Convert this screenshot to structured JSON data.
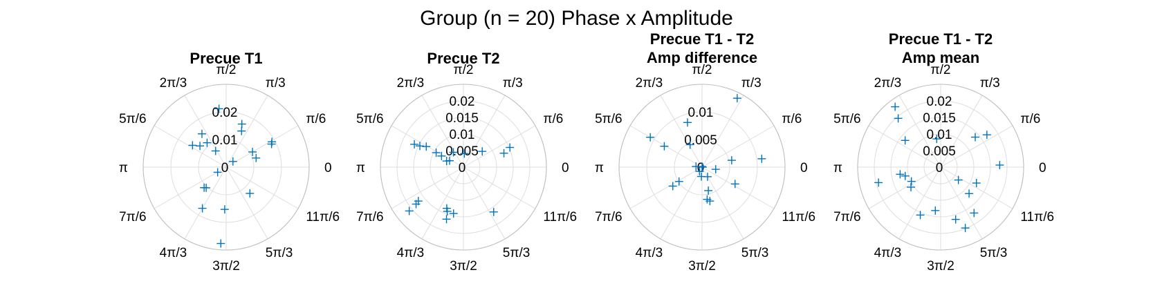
{
  "figure": {
    "title": "Group (n = 20) Phase x Amplitude"
  },
  "style": {
    "marker_color": "#0072bd",
    "grid_color": "#dedede",
    "axis_color": "#bcbcbc"
  },
  "chart_data": [
    {
      "type": "scatter",
      "coordinate_system": "polar",
      "marker": "+",
      "title_lines": [
        "Precue T1"
      ],
      "rlim": [
        0,
        0.03
      ],
      "rticks": [
        0,
        0.01,
        0.02
      ],
      "rtick_labels": [
        "0",
        "0.01",
        "0.02"
      ],
      "theta_ticks_deg": [
        0,
        30,
        60,
        90,
        120,
        150,
        180,
        210,
        240,
        270,
        300,
        330
      ],
      "theta_tick_labels": [
        "0",
        "π/6",
        "π/3",
        "π/2",
        "2π/3",
        "5π/6",
        "π",
        "7π/6",
        "4π/3",
        "3π/2",
        "5π/3",
        "11π/6"
      ],
      "points": [
        {
          "theta_deg": 97,
          "r": 0.0213
        },
        {
          "theta_deg": 70,
          "r": 0.0166
        },
        {
          "theta_deg": 67,
          "r": 0.0142
        },
        {
          "theta_deg": 29,
          "r": 0.0189
        },
        {
          "theta_deg": 27,
          "r": 0.0184
        },
        {
          "theta_deg": 30,
          "r": 0.011
        },
        {
          "theta_deg": 17,
          "r": 0.0113
        },
        {
          "theta_deg": 126,
          "r": 0.0149
        },
        {
          "theta_deg": 128,
          "r": 0.0112
        },
        {
          "theta_deg": 147,
          "r": 0.0145
        },
        {
          "theta_deg": 141,
          "r": 0.0122
        },
        {
          "theta_deg": 123,
          "r": 0.007
        },
        {
          "theta_deg": 40,
          "r": 0.0032
        },
        {
          "theta_deg": 211,
          "r": 0.0036
        },
        {
          "theta_deg": 223,
          "r": 0.0109
        },
        {
          "theta_deg": 226,
          "r": 0.0104
        },
        {
          "theta_deg": 240,
          "r": 0.0172
        },
        {
          "theta_deg": 268,
          "r": 0.0153
        },
        {
          "theta_deg": 266,
          "r": 0.0277
        },
        {
          "theta_deg": 312,
          "r": 0.0128
        }
      ]
    },
    {
      "type": "scatter",
      "coordinate_system": "polar",
      "marker": "+",
      "title_lines": [
        "Precue T2"
      ],
      "rlim": [
        0,
        0.025
      ],
      "rticks": [
        0,
        0.005,
        0.01,
        0.015,
        0.02
      ],
      "rtick_labels": [
        "0",
        "0.005",
        "0.01",
        "0.015",
        "0.02"
      ],
      "theta_ticks_deg": [
        0,
        30,
        60,
        90,
        120,
        150,
        180,
        210,
        240,
        270,
        300,
        330
      ],
      "theta_tick_labels": [
        "0",
        "π/6",
        "π/3",
        "π/2",
        "2π/3",
        "5π/6",
        "π",
        "7π/6",
        "4π/3",
        "3π/2",
        "5π/3",
        "11π/6"
      ],
      "points": [
        {
          "theta_deg": 155,
          "r": 0.0163
        },
        {
          "theta_deg": 154,
          "r": 0.0146
        },
        {
          "theta_deg": 151,
          "r": 0.0128
        },
        {
          "theta_deg": 152,
          "r": 0.0093
        },
        {
          "theta_deg": 153,
          "r": 0.0074
        },
        {
          "theta_deg": 160,
          "r": 0.0054
        },
        {
          "theta_deg": 124,
          "r": 0.0054
        },
        {
          "theta_deg": 40,
          "r": 0.0074
        },
        {
          "theta_deg": 19,
          "r": 0.0129
        },
        {
          "theta_deg": 23,
          "r": 0.0152
        },
        {
          "theta_deg": 86,
          "r": 0.0041
        },
        {
          "theta_deg": 155,
          "r": 0.0046
        },
        {
          "theta_deg": 219,
          "r": 0.021
        },
        {
          "theta_deg": 218,
          "r": 0.0181
        },
        {
          "theta_deg": 217,
          "r": 0.017
        },
        {
          "theta_deg": 248,
          "r": 0.0134
        },
        {
          "theta_deg": 250,
          "r": 0.0142
        },
        {
          "theta_deg": 252,
          "r": 0.0165
        },
        {
          "theta_deg": 258,
          "r": 0.0143
        },
        {
          "theta_deg": 304,
          "r": 0.0163
        }
      ]
    },
    {
      "type": "scatter",
      "coordinate_system": "polar",
      "marker": "+",
      "title_lines": [
        "Precue T1 - T2",
        "Amp difference"
      ],
      "rlim": [
        0,
        0.015
      ],
      "rticks": [
        0,
        0.005,
        0.01
      ],
      "rtick_labels": [
        "0",
        "0.005",
        "0.01"
      ],
      "theta_ticks_deg": [
        0,
        30,
        60,
        90,
        120,
        150,
        180,
        210,
        240,
        270,
        300,
        330
      ],
      "theta_tick_labels": [
        "0",
        "π/6",
        "π/3",
        "π/2",
        "2π/3",
        "5π/6",
        "π",
        "7π/6",
        "4π/3",
        "3π/2",
        "5π/3",
        "11π/6"
      ],
      "points": [
        {
          "theta_deg": 63,
          "r": 0.014
        },
        {
          "theta_deg": 8,
          "r": 0.0109
        },
        {
          "theta_deg": 108,
          "r": 0.0085
        },
        {
          "theta_deg": 150,
          "r": 0.0108
        },
        {
          "theta_deg": 151,
          "r": 0.0078
        },
        {
          "theta_deg": 118,
          "r": 0.0046
        },
        {
          "theta_deg": 13,
          "r": 0.0055
        },
        {
          "theta_deg": 351,
          "r": 0.0025
        },
        {
          "theta_deg": 333,
          "r": 0.0067
        },
        {
          "theta_deg": 174,
          "r": 0.0011
        },
        {
          "theta_deg": 90,
          "r": 0.0001
        },
        {
          "theta_deg": 0,
          "r": 0.0001
        },
        {
          "theta_deg": 300,
          "r": 0.002
        },
        {
          "theta_deg": 212,
          "r": 0.0049
        },
        {
          "theta_deg": 213,
          "r": 0.0063
        },
        {
          "theta_deg": 285,
          "r": 0.0044
        },
        {
          "theta_deg": 279,
          "r": 0.0059
        },
        {
          "theta_deg": 283,
          "r": 0.0063
        },
        {
          "theta_deg": 266,
          "r": 0.0017
        },
        {
          "theta_deg": 240,
          "r": 0.0009
        }
      ]
    },
    {
      "type": "scatter",
      "coordinate_system": "polar",
      "marker": "+",
      "title_lines": [
        "Precue T1 - T2",
        "Amp mean"
      ],
      "rlim": [
        0,
        0.025
      ],
      "rticks": [
        0,
        0.005,
        0.01,
        0.015,
        0.02
      ],
      "rtick_labels": [
        "0",
        "0.005",
        "0.01",
        "0.015",
        "0.02"
      ],
      "theta_ticks_deg": [
        0,
        30,
        60,
        90,
        120,
        150,
        180,
        210,
        240,
        270,
        300,
        330
      ],
      "theta_tick_labels": [
        "0",
        "π/6",
        "π/3",
        "π/2",
        "2π/3",
        "5π/6",
        "π",
        "7π/6",
        "4π/3",
        "3π/2",
        "5π/3",
        "11π/6"
      ],
      "points": [
        {
          "theta_deg": 127,
          "r": 0.0228
        },
        {
          "theta_deg": 131,
          "r": 0.0195
        },
        {
          "theta_deg": 98,
          "r": 0.0086
        },
        {
          "theta_deg": 143,
          "r": 0.0134
        },
        {
          "theta_deg": 41,
          "r": 0.0138
        },
        {
          "theta_deg": 35,
          "r": 0.017
        },
        {
          "theta_deg": 2,
          "r": 0.0178
        },
        {
          "theta_deg": 194,
          "r": 0.0193
        },
        {
          "theta_deg": 190,
          "r": 0.0124
        },
        {
          "theta_deg": 194,
          "r": 0.011
        },
        {
          "theta_deg": 206,
          "r": 0.0098
        },
        {
          "theta_deg": 214,
          "r": 0.0108
        },
        {
          "theta_deg": 247,
          "r": 0.0157
        },
        {
          "theta_deg": 263,
          "r": 0.0132
        },
        {
          "theta_deg": 286,
          "r": 0.0164
        },
        {
          "theta_deg": 292,
          "r": 0.0198
        },
        {
          "theta_deg": 306,
          "r": 0.0171
        },
        {
          "theta_deg": 317,
          "r": 0.0117
        },
        {
          "theta_deg": 336,
          "r": 0.0118
        },
        {
          "theta_deg": 324,
          "r": 0.0066
        }
      ]
    }
  ]
}
